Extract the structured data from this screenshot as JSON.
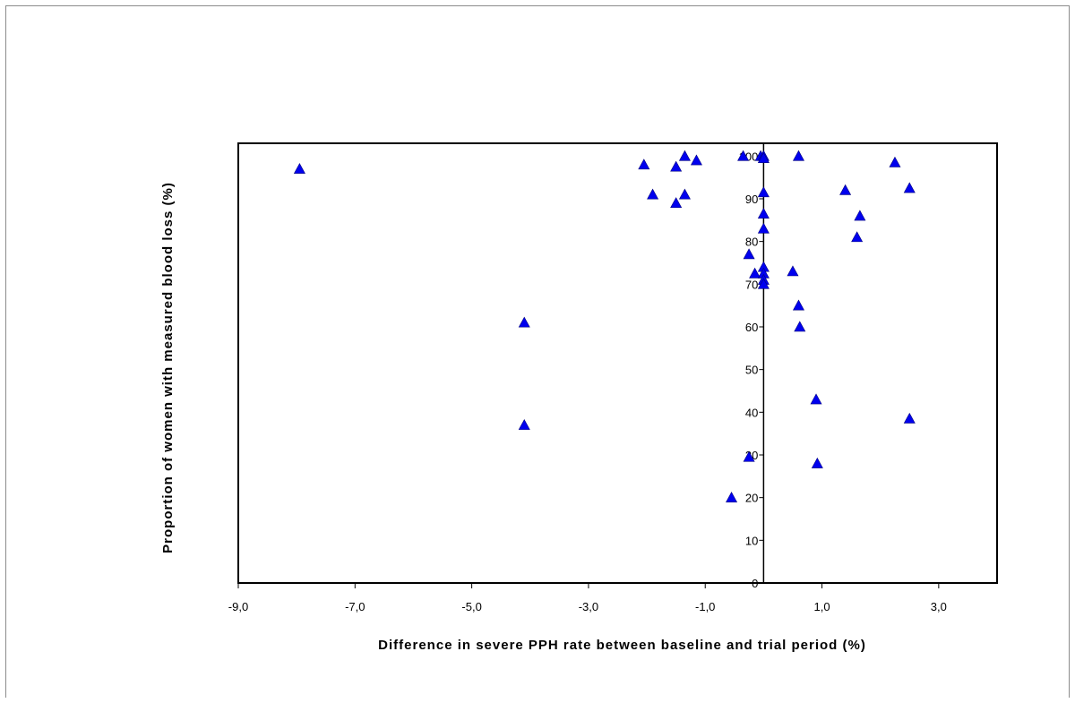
{
  "chart_data": {
    "type": "scatter",
    "title": "",
    "xlabel": "Difference in severe PPH rate between baseline and trial period (%)",
    "ylabel": "Proportion of women with measured blood loss (%)",
    "xlim": [
      -9,
      4
    ],
    "ylim": [
      0,
      103
    ],
    "x_ticks": [
      -9,
      -7,
      -5,
      -3,
      -1,
      1,
      3
    ],
    "x_tick_labels": [
      "-9,0",
      "-7,0",
      "-5,0",
      "-3,0",
      "-1,0",
      "1,0",
      "3,0"
    ],
    "y_ticks": [
      0,
      10,
      20,
      30,
      40,
      50,
      60,
      70,
      80,
      90,
      100
    ],
    "y_tick_labels": [
      "0",
      "10",
      "20",
      "30",
      "40",
      "50",
      "60",
      "70",
      "80",
      "90",
      "100"
    ],
    "y_axis_position_x": 0,
    "marker": "triangle",
    "marker_color": "#0000ee",
    "grid": false,
    "legend": "none",
    "points": [
      {
        "x": -7.95,
        "y": 97
      },
      {
        "x": -4.1,
        "y": 61
      },
      {
        "x": -4.1,
        "y": 37
      },
      {
        "x": -2.05,
        "y": 98
      },
      {
        "x": -1.9,
        "y": 91
      },
      {
        "x": -1.5,
        "y": 97.5
      },
      {
        "x": -1.5,
        "y": 89
      },
      {
        "x": -1.35,
        "y": 100
      },
      {
        "x": -1.35,
        "y": 91
      },
      {
        "x": -1.15,
        "y": 99
      },
      {
        "x": -0.55,
        "y": 20
      },
      {
        "x": -0.35,
        "y": 100
      },
      {
        "x": -0.25,
        "y": 77
      },
      {
        "x": -0.25,
        "y": 29.5
      },
      {
        "x": -0.15,
        "y": 72.5
      },
      {
        "x": -0.05,
        "y": 100
      },
      {
        "x": 0,
        "y": 100
      },
      {
        "x": 0,
        "y": 99.5
      },
      {
        "x": 0,
        "y": 91.5
      },
      {
        "x": 0,
        "y": 86.5
      },
      {
        "x": 0,
        "y": 83
      },
      {
        "x": 0,
        "y": 74
      },
      {
        "x": 0,
        "y": 72.5
      },
      {
        "x": 0,
        "y": 71
      },
      {
        "x": 0,
        "y": 70
      },
      {
        "x": 0.5,
        "y": 73
      },
      {
        "x": 0.6,
        "y": 100
      },
      {
        "x": 0.6,
        "y": 65
      },
      {
        "x": 0.62,
        "y": 60
      },
      {
        "x": 0.9,
        "y": 43
      },
      {
        "x": 0.92,
        "y": 28
      },
      {
        "x": 1.4,
        "y": 92
      },
      {
        "x": 1.6,
        "y": 81
      },
      {
        "x": 1.65,
        "y": 86
      },
      {
        "x": 2.25,
        "y": 98.5
      },
      {
        "x": 2.5,
        "y": 92.5
      },
      {
        "x": 2.5,
        "y": 38.5
      }
    ]
  }
}
